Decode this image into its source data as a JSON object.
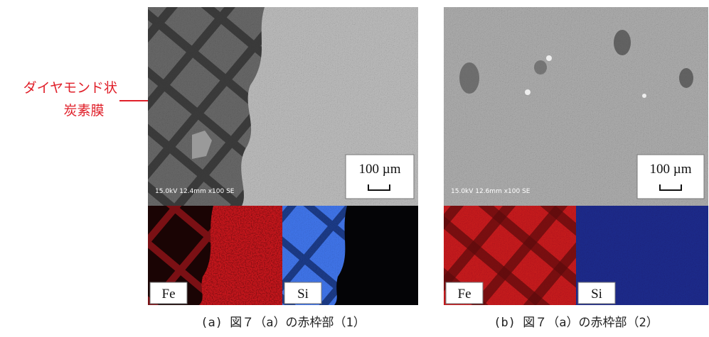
{
  "annotation": {
    "lines": [
      "ダイヤモンド状",
      "炭素膜"
    ]
  },
  "panels": [
    {
      "sem_info": "15.0kV 12.4mm x100 SE",
      "scale_bar": "100 µm",
      "maps": [
        "Fe",
        "Si"
      ],
      "caption": "(a) 図７（a）の赤枠部（1）"
    },
    {
      "sem_info": "15.0kV 12.6mm x100 SE",
      "scale_bar": "100 µm",
      "maps": [
        "Fe",
        "Si"
      ],
      "caption": "(b) 図７（a）の赤枠部（2）"
    }
  ]
}
